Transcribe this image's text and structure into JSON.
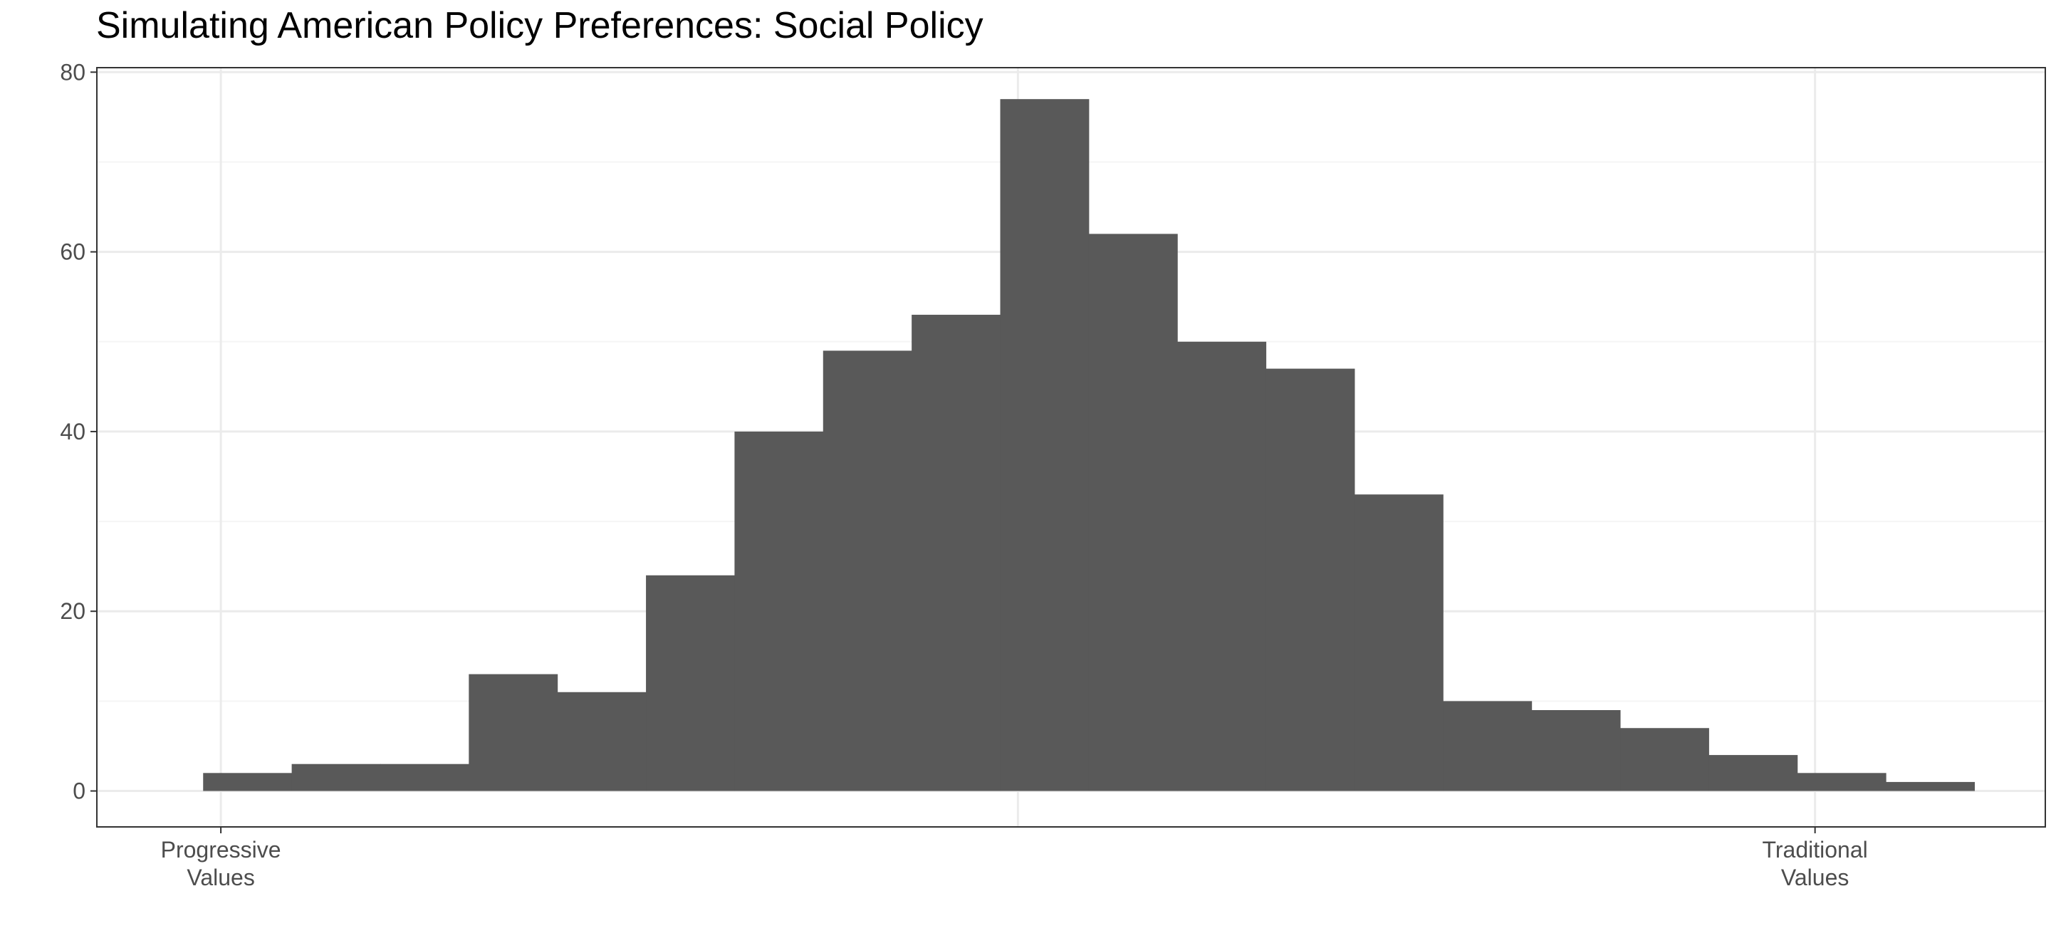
{
  "chart_data": {
    "type": "bar",
    "title": "Simulating American Policy Preferences: Social Policy",
    "xlabel": "",
    "ylabel": "",
    "bin_edges": [
      -2.3,
      -2.05,
      -1.8,
      -1.55,
      -1.3,
      -1.05,
      -0.8,
      -0.55,
      -0.3,
      -0.05,
      0.2,
      0.45,
      0.7,
      0.95,
      1.2,
      1.45,
      1.7,
      1.95,
      2.2,
      2.45,
      2.7
    ],
    "values": [
      2,
      3,
      3,
      13,
      11,
      24,
      40,
      49,
      53,
      77,
      62,
      50,
      47,
      33,
      10,
      9,
      7,
      4,
      2,
      1
    ],
    "xlim": [
      -2.6,
      2.9
    ],
    "ylim": [
      -4,
      80.5
    ],
    "x_breaks": [
      -2.25,
      0,
      2.25
    ],
    "x_minor_breaks": [],
    "x_tick_labels": [
      {
        "value": -2.25,
        "lines": [
          "Progressive",
          "Values"
        ]
      },
      {
        "value": 2.25,
        "lines": [
          "Traditional",
          "Values"
        ]
      }
    ],
    "y_ticks": [
      0,
      20,
      40,
      60,
      80
    ],
    "y_minor_ticks": [
      10,
      30,
      50,
      70
    ],
    "grid": true,
    "bar_color": "#595959"
  },
  "colors": {
    "bar": "#595959",
    "grid_major": "#ebebeb",
    "grid_minor": "#f5f5f5",
    "panel_border": "#333333",
    "tick_text": "#4d4d4d"
  }
}
